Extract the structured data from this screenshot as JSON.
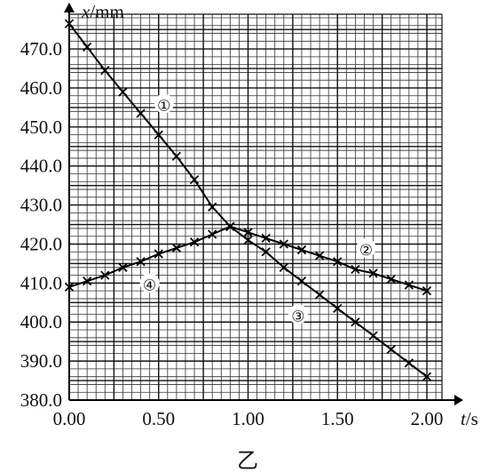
{
  "chart_data": {
    "type": "line",
    "caption": "乙",
    "xlabel": "t/s",
    "ylabel": "x/mm",
    "xlabel_italic": "t",
    "xlabel_unit": "/s",
    "ylabel_italic": "x",
    "ylabel_unit": "/mm",
    "xlim": [
      0.0,
      2.05
    ],
    "ylim": [
      380.0,
      478.0
    ],
    "xticks": [
      "0.00",
      "0.50",
      "1.00",
      "1.50",
      "2.00"
    ],
    "xtick_values": [
      0.0,
      0.5,
      1.0,
      1.5,
      2.0
    ],
    "yticks": [
      "380.0",
      "390.0",
      "400.0",
      "410.0",
      "420.0",
      "430.0",
      "440.0",
      "450.0",
      "460.0",
      "470.0"
    ],
    "ytick_values": [
      380,
      390,
      400,
      410,
      420,
      430,
      440,
      450,
      460,
      470
    ],
    "grid": true,
    "series": [
      {
        "name": "①",
        "x": [
          0.0,
          0.1,
          0.2,
          0.3,
          0.4,
          0.5,
          0.6,
          0.7,
          0.8,
          0.9
        ],
        "y": [
          476.5,
          470.5,
          464.5,
          459.0,
          453.5,
          448.0,
          442.5,
          436.5,
          429.5,
          424.5
        ]
      },
      {
        "name": "②",
        "x": [
          0.9,
          1.0,
          1.1,
          1.2,
          1.3,
          1.4,
          1.5,
          1.6,
          1.7,
          1.8,
          1.9,
          2.0
        ],
        "y": [
          424.5,
          423.0,
          421.5,
          420.0,
          418.5,
          417.0,
          415.5,
          413.5,
          412.5,
          411.0,
          409.5,
          408.0
        ]
      },
      {
        "name": "③",
        "x": [
          0.9,
          1.0,
          1.1,
          1.2,
          1.3,
          1.4,
          1.5,
          1.6,
          1.7,
          1.8,
          1.9,
          2.0
        ],
        "y": [
          424.5,
          421.0,
          418.0,
          414.0,
          410.5,
          407.0,
          403.5,
          400.0,
          396.5,
          393.0,
          389.5,
          386.0
        ]
      },
      {
        "name": "④",
        "x": [
          0.0,
          0.1,
          0.2,
          0.3,
          0.4,
          0.5,
          0.6,
          0.7,
          0.8,
          0.9
        ],
        "y": [
          409.0,
          410.5,
          412.0,
          414.0,
          415.5,
          417.5,
          419.0,
          420.5,
          422.5,
          424.5
        ]
      }
    ],
    "series_label_points": [
      {
        "name": "①",
        "x": 0.53,
        "y": 456.0
      },
      {
        "name": "②",
        "x": 1.66,
        "y": 419.0
      },
      {
        "name": "③",
        "x": 1.28,
        "y": 402.0
      },
      {
        "name": "④",
        "x": 0.45,
        "y": 410.0
      }
    ]
  }
}
